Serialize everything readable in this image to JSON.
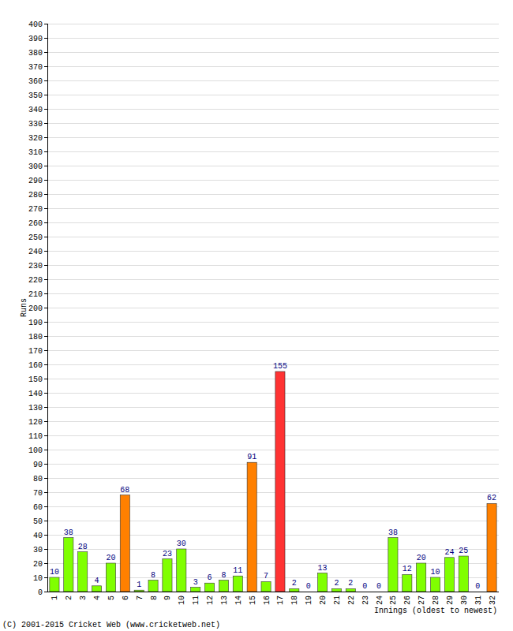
{
  "chart_data": {
    "type": "bar",
    "y_label": "Runs",
    "x_label": "Innings (oldest to newest)",
    "annotations": [
      "(C) 2001-2015 Cricket Web (www.cricketweb.net)"
    ],
    "categories": [
      "1",
      "2",
      "3",
      "4",
      "5",
      "6",
      "7",
      "8",
      "9",
      "10",
      "11",
      "12",
      "13",
      "14",
      "15",
      "16",
      "17",
      "18",
      "19",
      "20",
      "21",
      "22",
      "23",
      "24",
      "25",
      "26",
      "27",
      "28",
      "29",
      "30",
      "31",
      "32"
    ],
    "values": [
      10,
      38,
      28,
      4,
      20,
      68,
      1,
      8,
      23,
      30,
      3,
      6,
      8,
      11,
      91,
      7,
      155,
      2,
      0,
      13,
      2,
      2,
      0,
      0,
      38,
      12,
      20,
      10,
      24,
      25,
      0,
      62
    ],
    "colors": [
      "#80ff00",
      "#80ff00",
      "#80ff00",
      "#80ff00",
      "#80ff00",
      "#ff8000",
      "#80ff00",
      "#80ff00",
      "#80ff00",
      "#80ff00",
      "#80ff00",
      "#80ff00",
      "#80ff00",
      "#80ff00",
      "#ff8000",
      "#80ff00",
      "#ff3333",
      "#80ff00",
      "#80ff00",
      "#80ff00",
      "#80ff00",
      "#80ff00",
      "#80ff00",
      "#80ff00",
      "#80ff00",
      "#80ff00",
      "#80ff00",
      "#80ff00",
      "#80ff00",
      "#80ff00",
      "#80ff00",
      "#ff8000"
    ],
    "ylim": [
      0,
      400
    ],
    "yticks": [
      0,
      10,
      20,
      30,
      40,
      50,
      60,
      70,
      80,
      90,
      100,
      110,
      120,
      130,
      140,
      150,
      160,
      170,
      180,
      190,
      200,
      210,
      220,
      230,
      240,
      250,
      260,
      270,
      280,
      290,
      300,
      310,
      320,
      330,
      340,
      350,
      360,
      370,
      380,
      390,
      400
    ],
    "grid": true,
    "data_labels": true
  }
}
